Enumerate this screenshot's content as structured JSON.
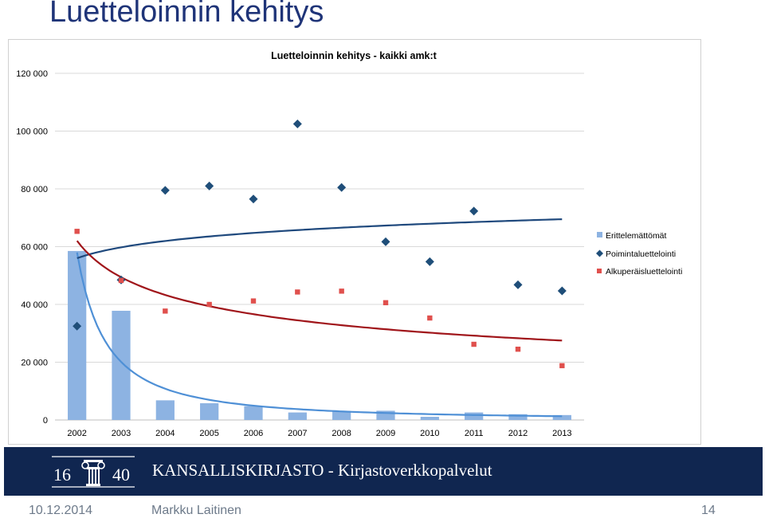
{
  "slide": {
    "title": "Luetteloinnin kehitys",
    "footer_org": "KANSALLISKIRJASTO - Kirjastoverkkopalvelut",
    "logo_text_left": "16",
    "logo_text_right": "40",
    "date": "10.12.2014",
    "author": "Markku Laitinen",
    "page_number": "14"
  },
  "colors": {
    "bar": "#8db3e2",
    "diamond": "#1f4e79",
    "square": "#e0504d",
    "trend_blue_light": "#4f90d6",
    "trend_blue_dark": "#1f497d",
    "trend_red": "#a0151a",
    "gridline": "#d9d9d9",
    "footer_band": "#102650"
  },
  "chart_data": {
    "type": "bar",
    "title": "Luetteloinnin kehitys - kaikki amk:t",
    "categories": [
      "2002",
      "2003",
      "2004",
      "2005",
      "2006",
      "2007",
      "2008",
      "2009",
      "2010",
      "2011",
      "2012",
      "2013"
    ],
    "ylim": [
      0,
      120000
    ],
    "yticks": [
      0,
      20000,
      40000,
      60000,
      80000,
      100000,
      120000
    ],
    "ytick_labels": [
      "0",
      "20 000",
      "40 000",
      "60 000",
      "80 000",
      "100 000",
      "120 000"
    ],
    "grid": true,
    "legend_position": "right",
    "series": [
      {
        "name": "Erittelemättömät",
        "kind": "bar",
        "values": [
          58500,
          37800,
          6800,
          5800,
          4800,
          2600,
          3100,
          3200,
          1100,
          2600,
          2000,
          1700
        ]
      },
      {
        "name": "Poimintaluettelointi",
        "kind": "scatter-diamond",
        "values": [
          32500,
          48500,
          79500,
          81000,
          76500,
          102500,
          80500,
          61700,
          54800,
          72300,
          46800,
          44700
        ]
      },
      {
        "name": "Alkuperäisluettelointi",
        "kind": "scatter-square",
        "values": [
          65300,
          48300,
          37700,
          40000,
          41200,
          44300,
          44600,
          40600,
          35300,
          26200,
          24500,
          18800
        ]
      }
    ],
    "trendlines": [
      {
        "series": "Erittelemättömät",
        "kind": "power",
        "start": 58000,
        "end": 1300
      },
      {
        "series": "Poimintaluettelointi",
        "kind": "log",
        "start": 56000,
        "end": 69500
      },
      {
        "series": "Alkuperäisluettelointi",
        "kind": "power",
        "start": 62000,
        "end": 27500
      }
    ]
  }
}
